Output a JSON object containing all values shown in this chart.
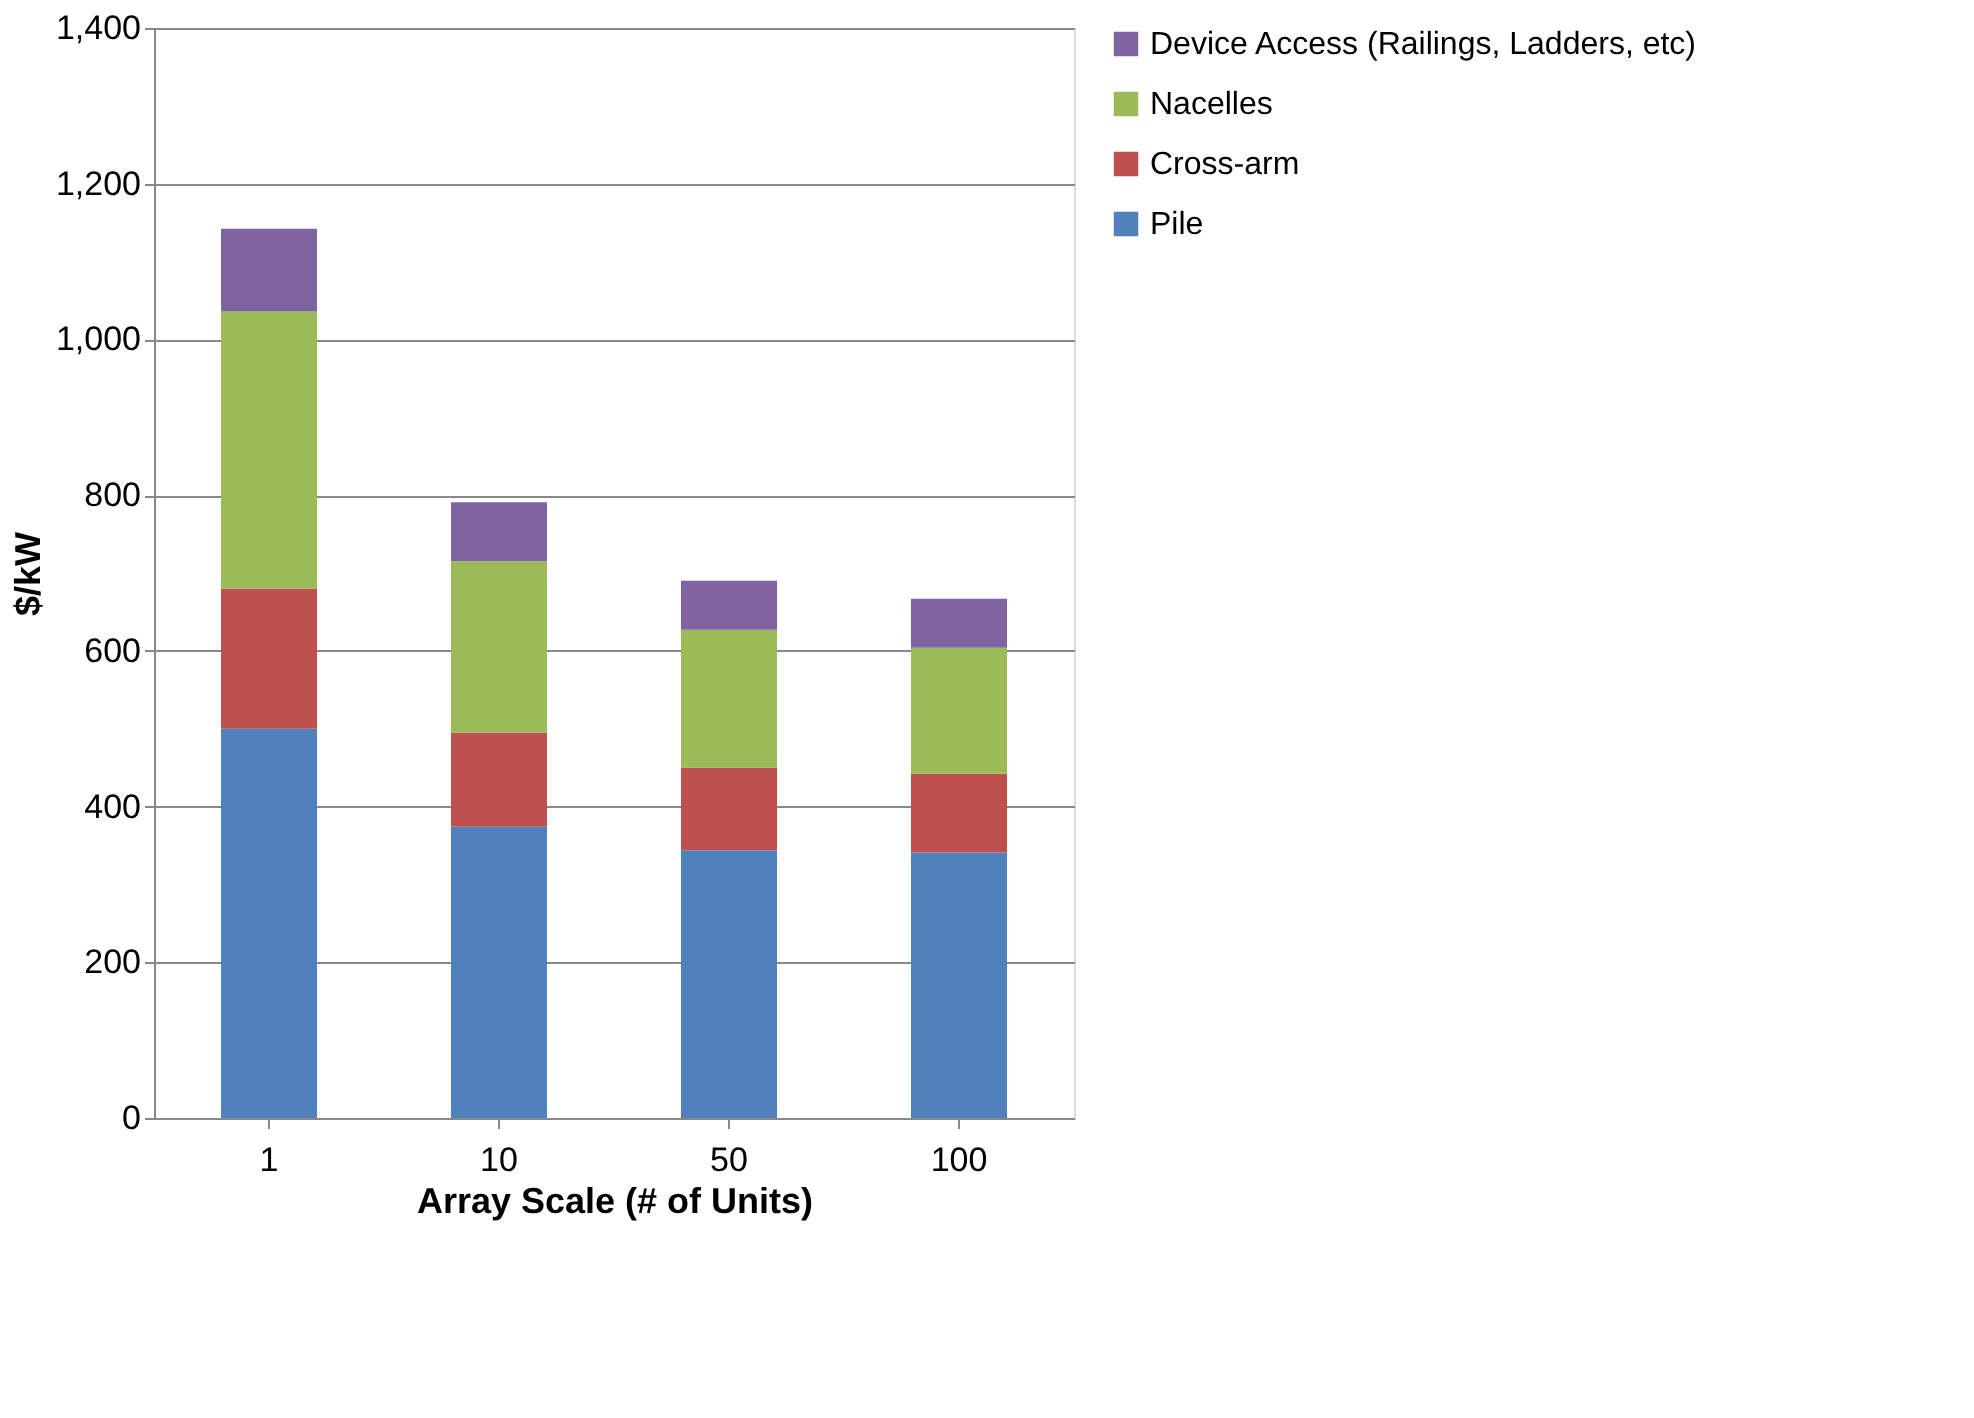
{
  "chart_data": {
    "type": "bar",
    "stacked": true,
    "xlabel": "Array Scale (# of Units)",
    "ylabel": "$/kW",
    "categories": [
      "1",
      "10",
      "50",
      "100"
    ],
    "series": [
      {
        "name": "Pile",
        "color": "#4f81bd",
        "values": [
          500,
          374,
          344,
          341
        ]
      },
      {
        "name": "Cross-arm",
        "color": "#c0504d",
        "values": [
          180,
          121,
          106,
          101
        ]
      },
      {
        "name": "Nacelles",
        "color": "#9bbb59",
        "values": [
          356,
          220,
          177,
          162
        ]
      },
      {
        "name": "Device Access (Railings, Ladders, etc)",
        "color": "#8064a2",
        "values": [
          106,
          76,
          63,
          63
        ]
      }
    ],
    "ylim": [
      0,
      1400
    ],
    "yticks": [
      0,
      200,
      400,
      600,
      800,
      {
        "value": 1000,
        "label": "1,000"
      },
      {
        "value": 1200,
        "label": "1,200"
      },
      {
        "value": 1400,
        "label": "1,400"
      }
    ],
    "grid": "y",
    "legend": "right"
  }
}
